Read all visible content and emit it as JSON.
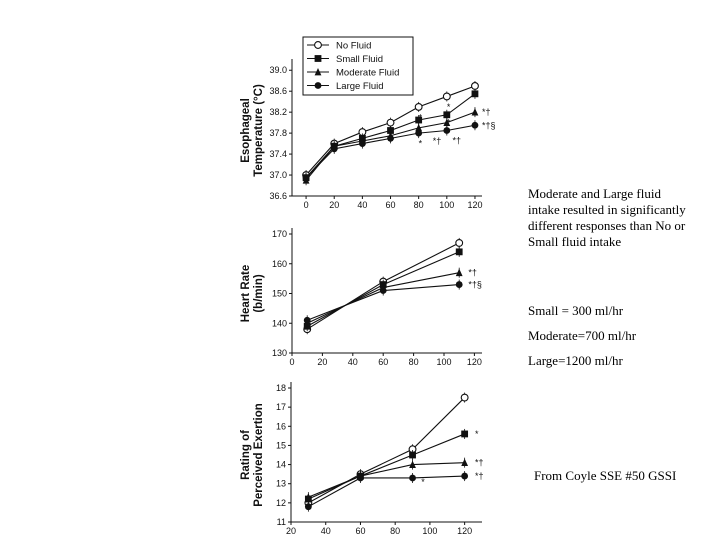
{
  "chart_data": [
    {
      "type": "line",
      "ylabel_lines": [
        "Esophageal",
        "Temperature (°C)"
      ],
      "yticks": [
        "36.6",
        "37.0",
        "37.4",
        "37.8",
        "38.2",
        "38.6",
        "39.0"
      ],
      "ytick_values": [
        36.6,
        37.0,
        37.4,
        37.8,
        38.2,
        38.6,
        39.0
      ],
      "xticks": [
        "0",
        "20",
        "40",
        "60",
        "80",
        "100",
        "120"
      ],
      "xtick_values": [
        0,
        20,
        40,
        60,
        80,
        100,
        120
      ],
      "xlim": [
        -10,
        125
      ],
      "ylim": [
        36.6,
        39.1
      ],
      "legend": [
        "No Fluid",
        "Small Fluid",
        "Moderate Fluid",
        "Large Fluid"
      ],
      "series": [
        {
          "name": "No Fluid",
          "marker": "open-circle",
          "x": [
            0,
            20,
            40,
            60,
            80,
            100,
            120
          ],
          "y": [
            37.0,
            37.6,
            37.82,
            38.0,
            38.3,
            38.5,
            38.7
          ]
        },
        {
          "name": "Small Fluid",
          "marker": "square",
          "x": [
            0,
            20,
            40,
            60,
            80,
            100,
            120
          ],
          "y": [
            36.95,
            37.55,
            37.7,
            37.85,
            38.05,
            38.15,
            38.55
          ]
        },
        {
          "name": "Moderate Fluid",
          "marker": "triangle",
          "x": [
            0,
            20,
            40,
            60,
            80,
            100,
            120
          ],
          "y": [
            36.9,
            37.55,
            37.65,
            37.75,
            37.9,
            38.0,
            38.2
          ]
        },
        {
          "name": "Large Fluid",
          "marker": "filled-circle",
          "x": [
            0,
            20,
            40,
            60,
            80,
            100,
            120
          ],
          "y": [
            36.95,
            37.5,
            37.6,
            37.7,
            37.8,
            37.85,
            37.95
          ]
        }
      ],
      "annotations": [
        {
          "text": "*",
          "x": 80,
          "y": 38.1
        },
        {
          "text": "*",
          "x": 100,
          "y": 38.3
        },
        {
          "text": "*",
          "x": 100,
          "y": 38.0
        },
        {
          "text": "*",
          "x": 80,
          "y": 37.6
        },
        {
          "text": "*†",
          "x": 90,
          "y": 37.65
        },
        {
          "text": "*†",
          "x": 104,
          "y": 37.66
        },
        {
          "text": "*†",
          "x": 125,
          "y": 38.2
        },
        {
          "text": "*†§",
          "x": 125,
          "y": 37.95
        }
      ]
    },
    {
      "type": "line",
      "ylabel_lines": [
        "Heart Rate",
        "(b/min)"
      ],
      "yticks": [
        "130",
        "140",
        "150",
        "160",
        "170"
      ],
      "ytick_values": [
        130,
        140,
        150,
        160,
        170
      ],
      "xticks": [
        "0",
        "20",
        "40",
        "60",
        "80",
        "100",
        "120"
      ],
      "xtick_values": [
        0,
        20,
        40,
        60,
        80,
        100,
        120
      ],
      "xlim": [
        0,
        125
      ],
      "ylim": [
        130,
        170
      ],
      "series": [
        {
          "name": "No Fluid",
          "marker": "open-circle",
          "x": [
            10,
            60,
            110
          ],
          "y": [
            138,
            154,
            167
          ]
        },
        {
          "name": "Small Fluid",
          "marker": "square",
          "x": [
            10,
            60,
            110
          ],
          "y": [
            139,
            153,
            164
          ]
        },
        {
          "name": "Moderate Fluid",
          "marker": "triangle",
          "x": [
            10,
            60,
            110
          ],
          "y": [
            140,
            152,
            157
          ]
        },
        {
          "name": "Large Fluid",
          "marker": "filled-circle",
          "x": [
            10,
            60,
            110
          ],
          "y": [
            141,
            151,
            153
          ]
        }
      ],
      "annotations": [
        {
          "text": "*†",
          "x": 116,
          "y": 157
        },
        {
          "text": "*†§",
          "x": 116,
          "y": 153
        }
      ]
    },
    {
      "type": "line",
      "ylabel_lines": [
        "Rating of",
        "Perceived Exertion"
      ],
      "yticks": [
        "11",
        "12",
        "13",
        "14",
        "15",
        "16",
        "17",
        "18"
      ],
      "ytick_values": [
        11,
        12,
        13,
        14,
        15,
        16,
        17,
        18
      ],
      "xticks": [
        "20",
        "40",
        "60",
        "80",
        "100",
        "120"
      ],
      "xtick_values": [
        20,
        40,
        60,
        80,
        100,
        120
      ],
      "xlim": [
        20,
        130
      ],
      "ylim": [
        11,
        18
      ],
      "series": [
        {
          "name": "No Fluid",
          "marker": "open-circle",
          "x": [
            30,
            60,
            90,
            120
          ],
          "y": [
            12.0,
            13.5,
            14.8,
            17.5
          ]
        },
        {
          "name": "Small Fluid",
          "marker": "square",
          "x": [
            30,
            60,
            90,
            120
          ],
          "y": [
            12.2,
            13.4,
            14.5,
            15.6
          ]
        },
        {
          "name": "Moderate Fluid",
          "marker": "triangle",
          "x": [
            30,
            60,
            90,
            120
          ],
          "y": [
            12.3,
            13.4,
            14.0,
            14.1
          ]
        },
        {
          "name": "Large Fluid",
          "marker": "filled-circle",
          "x": [
            30,
            60,
            90,
            120
          ],
          "y": [
            11.8,
            13.3,
            13.3,
            13.4
          ]
        }
      ],
      "annotations": [
        {
          "text": "*",
          "x": 126,
          "y": 15.6
        },
        {
          "text": "*†",
          "x": 126,
          "y": 14.1
        },
        {
          "text": "*†",
          "x": 126,
          "y": 13.4
        },
        {
          "text": "*",
          "x": 95,
          "y": 13.1
        }
      ]
    }
  ],
  "notes": {
    "summary": "Moderate and Large fluid intake resulted in significantly different responses than No or Small fluid intake",
    "small": "Small = 300 ml/hr",
    "moderate": "Moderate=700 ml/hr",
    "large": "Large=1200 ml/hr",
    "source": "From Coyle SSE #50 GSSI"
  }
}
